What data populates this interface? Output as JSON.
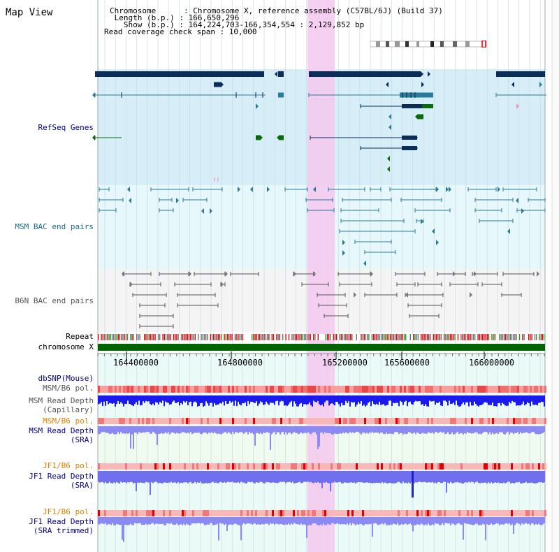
{
  "page": {
    "title": "Map View"
  },
  "info": {
    "chromosome_line": "Chromosome      : Chromosome X, reference assembly (C57BL/6J) (Build 37)",
    "length_line": " Length (b.p.) : 166,650,296",
    "show_line": "   Show (b.p.) : 164,224,703-166,354,554 : 2,129,852 bp",
    "coverage_line": "Read coverage check span : 10,000"
  },
  "tracks": {
    "refseq": "RefSeq Genes",
    "msm_bac": "MSM BAC end pairs",
    "b6n_bac": "B6N BAC end pairs",
    "repeat": "Repeat",
    "chromosome": "chromosome X",
    "dbsnp": "dbSNP(Mouse)",
    "msm_b6_pol_1": "MSM/B6 pol.",
    "msm_depth_cap_1": "MSM Read Depth",
    "msm_depth_cap_2": "(Capillary)",
    "msm_b6_pol_2": "MSM/B6 pol.",
    "msm_depth_sra_1": "MSM Read Depth",
    "msm_depth_sra_2": "(SRA)",
    "jf1_b6_pol_1": "JF1/B6 pol.",
    "jf1_depth_sra_1": "JF1 Read Depth",
    "jf1_depth_sra_2": "(SRA)",
    "jf1_b6_pol_2": "JF1/B6 pol.",
    "jf1_depth_trim_1": "JF1 Read Depth",
    "jf1_depth_trim_2": "(SRA trimmed)"
  },
  "axis": {
    "ticks": [
      "164400000",
      "164800000",
      "165200000",
      "165600000",
      "166000000"
    ]
  },
  "colors": {
    "refseq_bg": "#d6eef8",
    "msm_bg": "#e6f8fb",
    "b6n_bg": "#f4f4f4",
    "highlight": "#f5c8ee",
    "gene_dark": "#0a2d5a",
    "gene_teal": "#2a7a9a",
    "gene_green": "#0b6b0b",
    "chromosome_bar": "#006400",
    "label_blue": "#00008b",
    "label_orange": "#e08000"
  }
}
